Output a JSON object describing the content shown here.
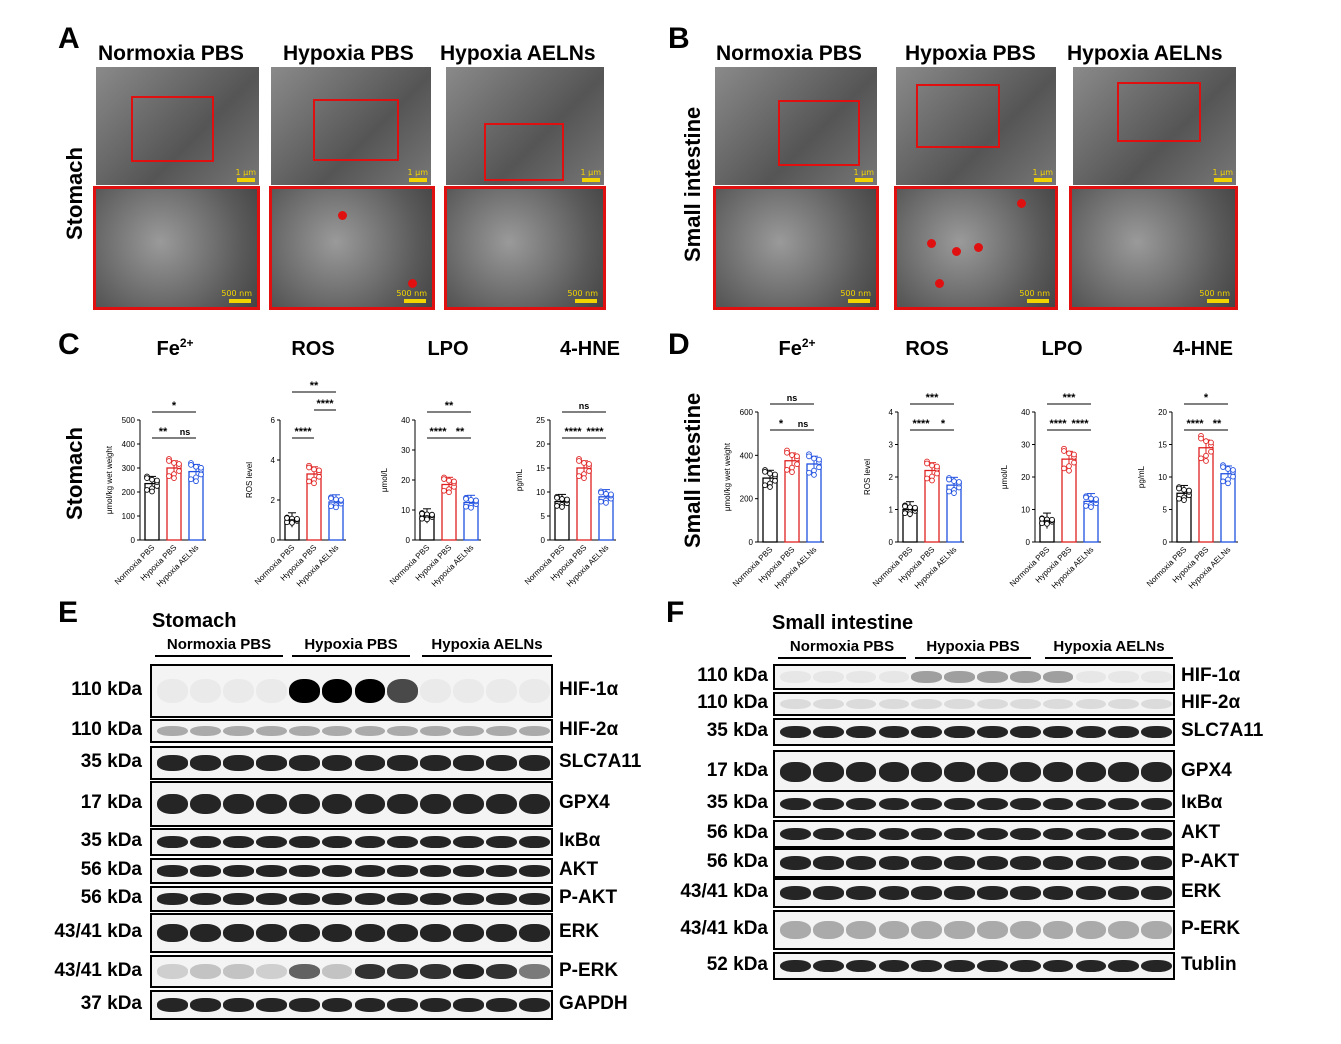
{
  "panels": {
    "A": "A",
    "B": "B",
    "C": "C",
    "D": "D",
    "E": "E",
    "F": "F"
  },
  "em": {
    "conditions": [
      "Normoxia PBS",
      "Hypoxia PBS",
      "Hypoxia AELNs"
    ],
    "stomach_label": "Stomach",
    "intestine_label": "Small intestine",
    "scale_top": "1 μm",
    "scale_bottom": "500 nm"
  },
  "charts": {
    "row_label_stomach": "Stomach",
    "row_label_intestine": "Small intestine",
    "groups": [
      "Normoxia PBS",
      "Hypoxia PBS",
      "Hypoxia AELNs"
    ],
    "group_colors": [
      "#000000",
      "#e02020",
      "#2050e0"
    ]
  },
  "chart_data": [
    {
      "type": "bar",
      "panel": "C",
      "title": "Fe2+",
      "ylabel": "μmol/kg wet weight",
      "ylim": [
        0,
        500
      ],
      "yticks": [
        0,
        100,
        200,
        300,
        400,
        500
      ],
      "categories": [
        "Normoxia PBS",
        "Hypoxia PBS",
        "Hypoxia AELNs"
      ],
      "values": [
        235,
        300,
        285
      ],
      "comparisons": [
        {
          "pair": [
            0,
            1
          ],
          "label": "**"
        },
        {
          "pair": [
            1,
            2
          ],
          "label": "ns"
        },
        {
          "pair": [
            0,
            2
          ],
          "label": "*"
        }
      ]
    },
    {
      "type": "bar",
      "panel": "C",
      "title": "ROS",
      "ylabel": "ROS level",
      "ylim": [
        0,
        6
      ],
      "yticks": [
        0,
        2,
        4,
        6
      ],
      "categories": [
        "Normoxia PBS",
        "Hypoxia PBS",
        "Hypoxia AELNs"
      ],
      "values": [
        1.0,
        3.3,
        1.9
      ],
      "comparisons": [
        {
          "pair": [
            0,
            1
          ],
          "label": "****"
        },
        {
          "pair": [
            1,
            2
          ],
          "label": "****"
        },
        {
          "pair": [
            0,
            2
          ],
          "label": "**"
        }
      ]
    },
    {
      "type": "bar",
      "panel": "C",
      "title": "LPO",
      "ylabel": "μmol/L",
      "ylim": [
        0,
        40
      ],
      "yticks": [
        0,
        10,
        20,
        30,
        40
      ],
      "categories": [
        "Normoxia PBS",
        "Hypoxia PBS",
        "Hypoxia AELNs"
      ],
      "values": [
        8,
        18.5,
        12.5
      ],
      "comparisons": [
        {
          "pair": [
            0,
            1
          ],
          "label": "****"
        },
        {
          "pair": [
            1,
            2
          ],
          "label": "**"
        },
        {
          "pair": [
            0,
            2
          ],
          "label": "**"
        }
      ]
    },
    {
      "type": "bar",
      "panel": "C",
      "title": "4-HNE",
      "ylabel": "pg/mL",
      "ylim": [
        0,
        25
      ],
      "yticks": [
        0,
        5,
        10,
        15,
        20,
        25
      ],
      "categories": [
        "Normoxia PBS",
        "Hypoxia PBS",
        "Hypoxia AELNs"
      ],
      "values": [
        8,
        15,
        9
      ],
      "comparisons": [
        {
          "pair": [
            0,
            1
          ],
          "label": "****"
        },
        {
          "pair": [
            1,
            2
          ],
          "label": "****"
        },
        {
          "pair": [
            0,
            2
          ],
          "label": "ns"
        }
      ]
    },
    {
      "type": "bar",
      "panel": "D",
      "title": "Fe2+",
      "ylabel": "μmol/kg wet weight",
      "ylim": [
        0,
        600
      ],
      "yticks": [
        0,
        200,
        400,
        600
      ],
      "categories": [
        "Normoxia PBS",
        "Hypoxia PBS",
        "Hypoxia AELNs"
      ],
      "values": [
        295,
        375,
        360
      ],
      "comparisons": [
        {
          "pair": [
            0,
            1
          ],
          "label": "*"
        },
        {
          "pair": [
            1,
            2
          ],
          "label": "ns"
        },
        {
          "pair": [
            0,
            2
          ],
          "label": "ns"
        }
      ]
    },
    {
      "type": "bar",
      "panel": "D",
      "title": "ROS",
      "ylabel": "ROS level",
      "ylim": [
        0,
        4
      ],
      "yticks": [
        0,
        1,
        2,
        3,
        4
      ],
      "categories": [
        "Normoxia PBS",
        "Hypoxia PBS",
        "Hypoxia AELNs"
      ],
      "values": [
        1.0,
        2.2,
        1.75
      ],
      "comparisons": [
        {
          "pair": [
            0,
            1
          ],
          "label": "****"
        },
        {
          "pair": [
            1,
            2
          ],
          "label": "*"
        },
        {
          "pair": [
            0,
            2
          ],
          "label": "***"
        }
      ]
    },
    {
      "type": "bar",
      "panel": "D",
      "title": "LPO",
      "ylabel": "μmol/L",
      "ylim": [
        0,
        40
      ],
      "yticks": [
        0,
        10,
        20,
        30,
        40
      ],
      "categories": [
        "Normoxia PBS",
        "Hypoxia PBS",
        "Hypoxia AELNs"
      ],
      "values": [
        6.5,
        25.5,
        12.5
      ],
      "comparisons": [
        {
          "pair": [
            0,
            1
          ],
          "label": "****"
        },
        {
          "pair": [
            1,
            2
          ],
          "label": "****"
        },
        {
          "pair": [
            0,
            2
          ],
          "label": "***"
        }
      ]
    },
    {
      "type": "bar",
      "panel": "D",
      "title": "4-HNE",
      "ylabel": "pg/mL",
      "ylim": [
        0,
        20
      ],
      "yticks": [
        0,
        5,
        10,
        15,
        20
      ],
      "categories": [
        "Normoxia PBS",
        "Hypoxia PBS",
        "Hypoxia AELNs"
      ],
      "values": [
        7.5,
        14.5,
        10.5
      ],
      "comparisons": [
        {
          "pair": [
            0,
            1
          ],
          "label": "****"
        },
        {
          "pair": [
            1,
            2
          ],
          "label": "**"
        },
        {
          "pair": [
            0,
            2
          ],
          "label": "*"
        }
      ]
    }
  ],
  "blots": {
    "stomach": {
      "title": "Stomach",
      "groups": [
        "Normoxia PBS",
        "Hypoxia PBS",
        "Hypoxia AELNs"
      ],
      "rows": [
        {
          "kda": "110 kDa",
          "name": "HIF-1α"
        },
        {
          "kda": "110 kDa",
          "name": "HIF-2α"
        },
        {
          "kda": "35 kDa",
          "name": "SLC7A11"
        },
        {
          "kda": "17 kDa",
          "name": "GPX4"
        },
        {
          "kda": "35 kDa",
          "name": "IκBα"
        },
        {
          "kda": "56 kDa",
          "name": "AKT"
        },
        {
          "kda": "56 kDa",
          "name": "P-AKT"
        },
        {
          "kda": "43/41 kDa",
          "name": "ERK"
        },
        {
          "kda": "43/41 kDa",
          "name": "P-ERK"
        },
        {
          "kda": "37 kDa",
          "name": "GAPDH"
        }
      ]
    },
    "intestine": {
      "title": "Small intestine",
      "groups": [
        "Normoxia PBS",
        "Hypoxia PBS",
        "Hypoxia AELNs"
      ],
      "rows": [
        {
          "kda": "110 kDa",
          "name": "HIF-1α"
        },
        {
          "kda": "110 kDa",
          "name": "HIF-2α"
        },
        {
          "kda": "35 kDa",
          "name": "SLC7A11"
        },
        {
          "kda": "17 kDa",
          "name": "GPX4"
        },
        {
          "kda": "35 kDa",
          "name": "IκBα"
        },
        {
          "kda": "56 kDa",
          "name": "AKT"
        },
        {
          "kda": "56 kDa",
          "name": "P-AKT"
        },
        {
          "kda": "43/41 kDa",
          "name": "ERK"
        },
        {
          "kda": "43/41 kDa",
          "name": "P-ERK"
        },
        {
          "kda": "52 kDa",
          "name": "Tublin"
        }
      ]
    }
  }
}
